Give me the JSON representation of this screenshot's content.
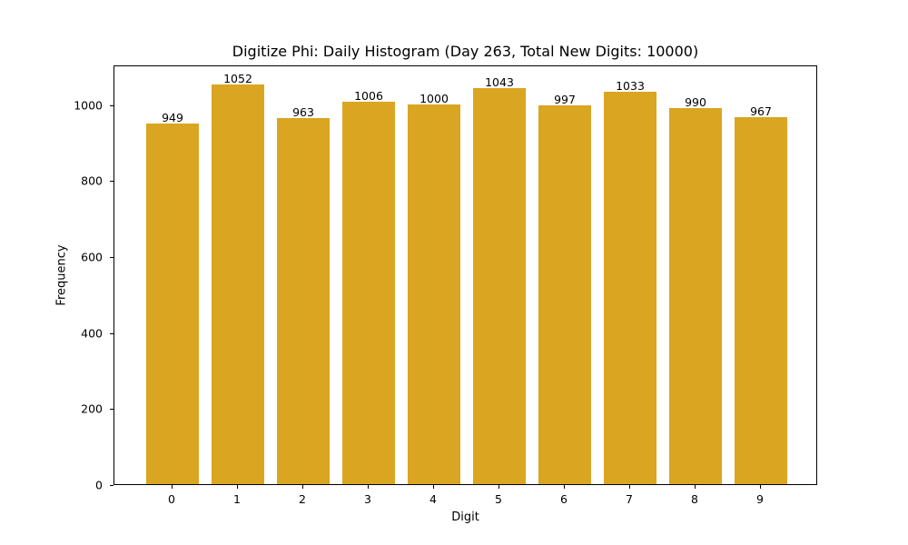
{
  "chart_data": {
    "type": "bar",
    "title": "Digitize Phi: Daily Histogram (Day 263, Total New Digits: 10000)",
    "xlabel": "Digit",
    "ylabel": "Frequency",
    "categories": [
      "0",
      "1",
      "2",
      "3",
      "4",
      "5",
      "6",
      "7",
      "8",
      "9"
    ],
    "values": [
      949,
      1052,
      963,
      1006,
      1000,
      1043,
      997,
      1033,
      990,
      967
    ],
    "data_labels": [
      "949",
      "1052",
      "963",
      "1006",
      "1000",
      "1043",
      "997",
      "1033",
      "990",
      "967"
    ],
    "yticks": [
      0,
      200,
      400,
      600,
      800,
      1000
    ],
    "ylim": [
      0,
      1104.6
    ],
    "bar_color": "#DAA520",
    "grid": false,
    "legend": null
  }
}
